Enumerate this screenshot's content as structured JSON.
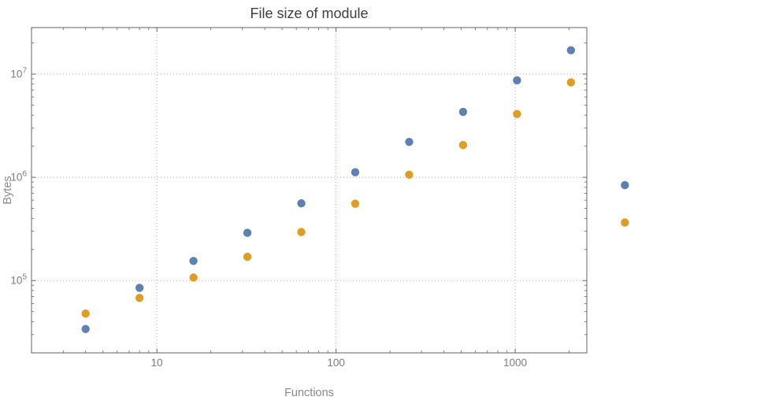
{
  "page": {
    "background_color": "#ffffff"
  },
  "chart_data": {
    "type": "scatter",
    "title": "File size of module",
    "xlabel": "Functions",
    "ylabel": "Bytes",
    "x_scale": "log",
    "y_scale": "log",
    "xlim_log10": [
      0.3,
      3.4
    ],
    "ylim_log10": [
      4.3,
      7.45
    ],
    "x_ticks": [
      10,
      100,
      1000
    ],
    "x_tick_labels": [
      "10",
      "100",
      "1000"
    ],
    "y_ticks": [
      100000,
      1000000,
      10000000
    ],
    "y_tick_base": "10",
    "y_tick_exponents": [
      "5",
      "6",
      "7"
    ],
    "grid": {
      "show": true,
      "style": "dotted",
      "color": "#b0b0b0"
    },
    "frame_color": "#666666",
    "tick_label_color": "#7d7d7d",
    "axis_label_color": "#8a8a8a",
    "title_color": "#404040",
    "point_radius": 5.2,
    "legend": {
      "show": false
    },
    "series": [
      {
        "name": "series-blue",
        "color": "#5e81b5",
        "points": [
          [
            4,
            34000
          ],
          [
            8,
            85000
          ],
          [
            16,
            155000
          ],
          [
            32,
            290000
          ],
          [
            64,
            560000
          ],
          [
            128,
            1120000
          ],
          [
            256,
            2200000
          ],
          [
            512,
            4300000
          ],
          [
            1024,
            8700000
          ],
          [
            2048,
            17000000
          ],
          [
            4096,
            840000
          ]
        ]
      },
      {
        "name": "series-orange",
        "color": "#e19c24",
        "points": [
          [
            4,
            48000
          ],
          [
            8,
            68000
          ],
          [
            16,
            107000
          ],
          [
            32,
            170000
          ],
          [
            64,
            295000
          ],
          [
            128,
            555000
          ],
          [
            256,
            1060000
          ],
          [
            512,
            2050000
          ],
          [
            1024,
            4100000
          ],
          [
            2048,
            8300000
          ],
          [
            4096,
            365000
          ]
        ]
      }
    ]
  }
}
